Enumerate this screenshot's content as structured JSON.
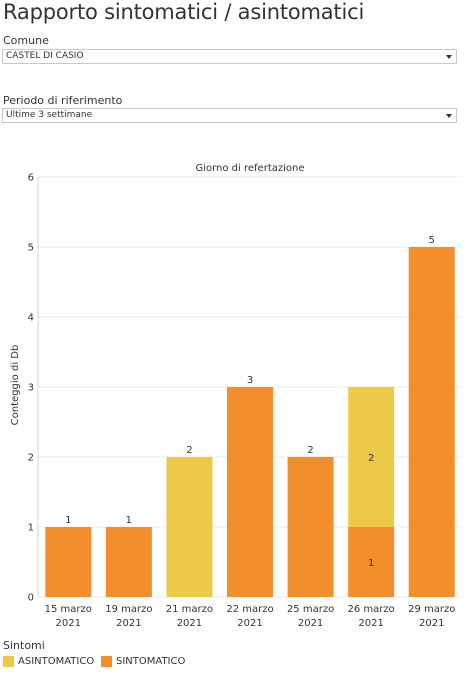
{
  "page": {
    "title": "Rapporto sintomatici / asintomatici"
  },
  "filters": {
    "comune": {
      "label": "Comune",
      "value": "CASTEL DI CASIO"
    },
    "periodo": {
      "label": "Periodo di riferimento",
      "value": "Ultime 3 settimane"
    }
  },
  "colors": {
    "asintomatico": "#EDC948",
    "sintomatico": "#F28E2B",
    "grid": "#e9e9e9",
    "text": "#333333"
  },
  "chart_data": {
    "type": "bar",
    "stacked": true,
    "title": "Giorno di refertazione",
    "ylabel": "Conteggio di Db",
    "xlabel": "",
    "ylim": [
      0,
      6
    ],
    "yticks": [
      0,
      1,
      2,
      3,
      4,
      5,
      6
    ],
    "grid": true,
    "categories": [
      [
        "15 marzo",
        "2021"
      ],
      [
        "19 marzo",
        "2021"
      ],
      [
        "21 marzo",
        "2021"
      ],
      [
        "22 marzo",
        "2021"
      ],
      [
        "25 marzo",
        "2021"
      ],
      [
        "26 marzo",
        "2021"
      ],
      [
        "29 marzo",
        "2021"
      ]
    ],
    "series": [
      {
        "name": "SINTOMATICO",
        "color": "#F28E2B",
        "values": [
          1,
          1,
          0,
          3,
          2,
          1,
          5
        ]
      },
      {
        "name": "ASINTOMATICO",
        "color": "#EDC948",
        "values": [
          0,
          0,
          2,
          0,
          0,
          2,
          0
        ]
      }
    ],
    "legend": {
      "title": "Sintomi",
      "position": "bottom-left",
      "entries": [
        "ASINTOMATICO",
        "SINTOMATICO"
      ]
    }
  }
}
